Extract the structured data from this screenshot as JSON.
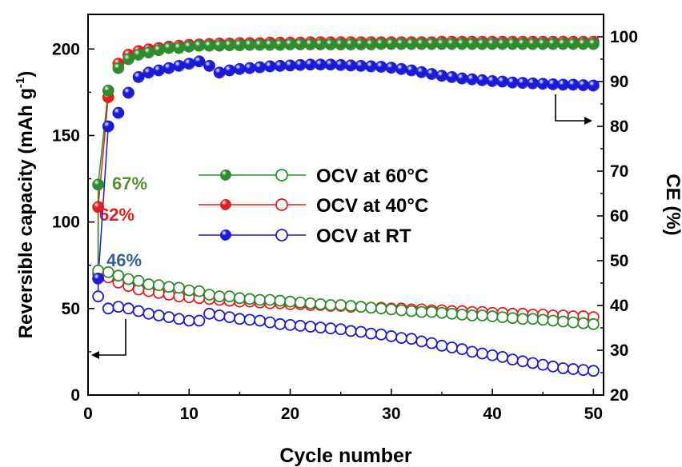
{
  "chart_data": {
    "type": "scatter",
    "xlabel": "Cycle number",
    "ylabel": "Reversible capacity (mAh g",
    "ylabel_sup": "-1",
    "ylabel_close": ")",
    "y2label": "CE (%)",
    "xlim": [
      0,
      51
    ],
    "ylim": [
      0,
      220
    ],
    "y2lim": [
      20,
      105
    ],
    "xticks": [
      "0",
      "10",
      "20",
      "30",
      "40",
      "50"
    ],
    "yticks": [
      "0",
      "50",
      "100",
      "150",
      "200"
    ],
    "y2ticks": [
      "20",
      "30",
      "40",
      "50",
      "60",
      "70",
      "80",
      "90",
      "100"
    ],
    "legend_position": "center",
    "series": [
      {
        "name": "OCV at 60°C",
        "color": "#2e8b2e",
        "capacity": [
          72,
          71,
          69,
          67,
          66,
          64,
          63.5,
          62.5,
          62,
          60.5,
          60,
          58,
          57,
          57,
          56,
          55.5,
          55,
          55,
          54.5,
          54,
          53.5,
          53,
          52.5,
          52,
          52,
          51.5,
          51,
          50.5,
          50,
          49.5,
          49,
          48.5,
          48,
          48,
          47.5,
          47,
          46.5,
          46,
          46,
          45.5,
          45,
          44.5,
          44,
          44,
          43.5,
          43,
          42.5,
          42,
          41.5,
          41
        ],
        "ce": [
          67,
          88,
          93,
          95,
          96,
          96.5,
          97,
          97.5,
          97.5,
          97.8,
          98,
          98,
          98,
          98.1,
          98.1,
          98.2,
          98.2,
          98.2,
          98.2,
          98.3,
          98.3,
          98.3,
          98.3,
          98.3,
          98.3,
          98.3,
          98.3,
          98.3,
          98.4,
          98.4,
          98.4,
          98.4,
          98.4,
          98.4,
          98.4,
          98.4,
          98.4,
          98.4,
          98.4,
          98.4,
          98.4,
          98.4,
          98.4,
          98.4,
          98.4,
          98.4,
          98.4,
          98.4,
          98.4,
          98.4
        ]
      },
      {
        "name": "OCV at 40°C",
        "color": "#e02020",
        "capacity": [
          70,
          68,
          65,
          63,
          61,
          60,
          59,
          58,
          57,
          56.5,
          56,
          55.5,
          55,
          54.5,
          54,
          54,
          53.5,
          53,
          53,
          52.5,
          52.5,
          52,
          52,
          51.5,
          51.5,
          51,
          51,
          50.5,
          50.5,
          50,
          50,
          49.5,
          49.5,
          49,
          49,
          48.5,
          48.5,
          48,
          48,
          47.5,
          47.5,
          47,
          47,
          46.5,
          46.5,
          46,
          46,
          45.5,
          45.5,
          45
        ],
        "ce": [
          62,
          86.5,
          94,
          96,
          96.8,
          97.2,
          97.5,
          97.8,
          98,
          98.2,
          98.3,
          98.4,
          98.5,
          98.5,
          98.6,
          98.6,
          98.6,
          98.7,
          98.7,
          98.7,
          98.7,
          98.8,
          98.8,
          98.8,
          98.8,
          98.8,
          98.8,
          98.8,
          98.8,
          98.8,
          98.8,
          98.8,
          98.8,
          98.8,
          98.9,
          98.9,
          98.9,
          98.9,
          98.9,
          98.9,
          98.9,
          98.9,
          98.9,
          98.9,
          98.9,
          98.9,
          98.9,
          98.9,
          98.9,
          98.9
        ]
      },
      {
        "name": "OCV at RT",
        "color": "#1a1ad8",
        "capacity": [
          57,
          50,
          51,
          50,
          48.5,
          47,
          46,
          45,
          44,
          43,
          43,
          47,
          46,
          45,
          44,
          43.5,
          43,
          42,
          41,
          40.5,
          40,
          39.5,
          39,
          38.5,
          38,
          37,
          36.5,
          35.5,
          35,
          34,
          33,
          32.5,
          31,
          30,
          28.5,
          27.5,
          26.5,
          25,
          24,
          23,
          22,
          20.5,
          19.5,
          18.5,
          17.5,
          16.5,
          15.5,
          15,
          14.5,
          14
        ],
        "ce": [
          46,
          80,
          83,
          87.5,
          91,
          92,
          92.5,
          93,
          93.5,
          94,
          94.5,
          93.5,
          92,
          92.5,
          92.8,
          93,
          93.2,
          93.4,
          93.5,
          93.6,
          93.7,
          93.8,
          93.8,
          93.8,
          93.7,
          93.6,
          93.5,
          93.4,
          93.3,
          93.1,
          92.8,
          92.5,
          92.1,
          91.7,
          91.3,
          91,
          90.7,
          90.5,
          90.3,
          90.1,
          90,
          89.8,
          89.7,
          89.6,
          89.5,
          89.4,
          89.3,
          89.3,
          89.2,
          89.1
        ]
      }
    ],
    "annotations": [
      {
        "text": "67%",
        "color": "#5a8f2e"
      },
      {
        "text": "62%",
        "color": "#e02020"
      },
      {
        "text": "46%",
        "color": "#3a5f9a"
      }
    ]
  }
}
